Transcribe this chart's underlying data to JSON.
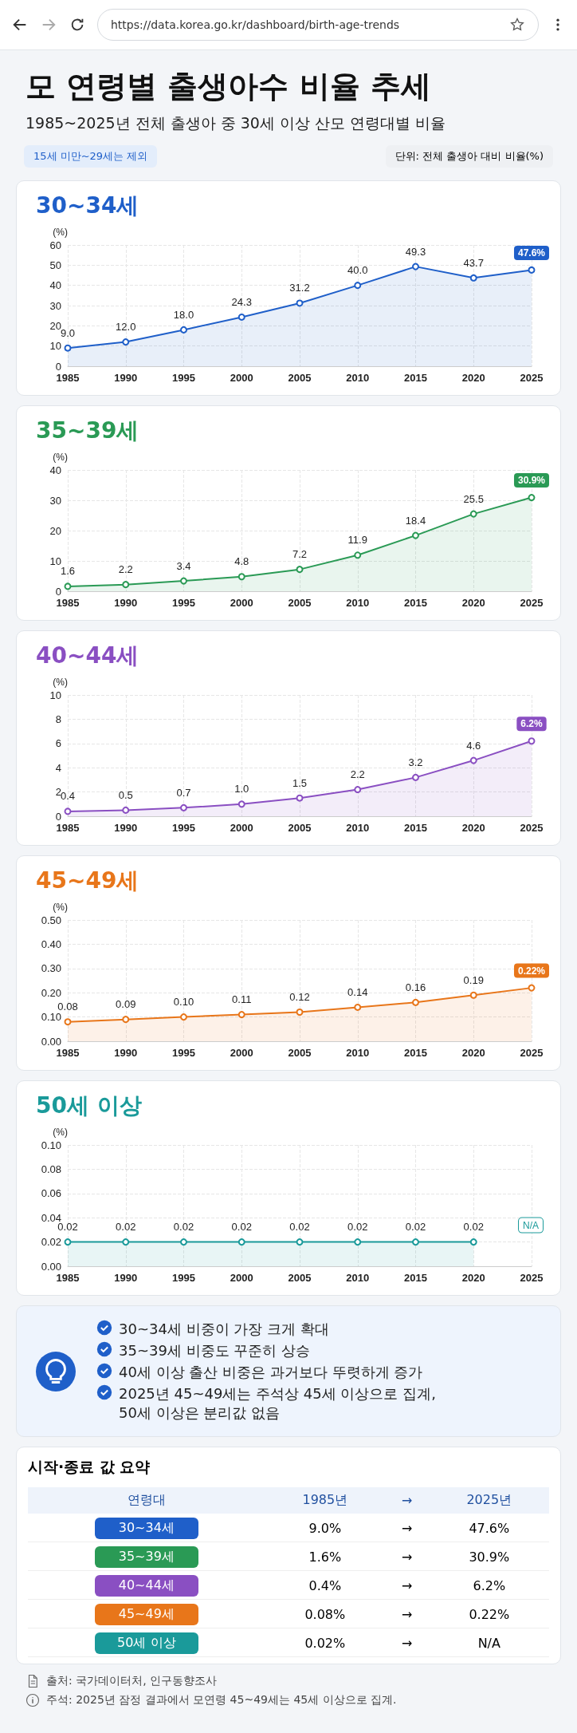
{
  "chart_data": [
    {
      "type": "other",
      "title": "모 연령별 출생아수 비율 추세",
      "subtitle": "1985~2025년 전체 출생아 중 30세 이상 산모 연령대별 비율",
      "annotations": [
        "https://data.korea.go.kr/dashboard/birth-age-trends",
        "15세 미만~29세는 제외",
        "단위: 전체 출생아 대비 비율(%)"
      ]
    },
    {
      "type": "area",
      "title": "30~34세",
      "ylabel": "(%)",
      "categories": [
        "1985",
        "1990",
        "1995",
        "2000",
        "2005",
        "2010",
        "2015",
        "2020",
        "2025"
      ],
      "series": [
        {
          "color": "#1f5fc9",
          "values": [
            9.0,
            12.0,
            18.0,
            24.3,
            31.2,
            40.0,
            49.3,
            43.7,
            47.6
          ],
          "value_labels": [
            "9.0",
            "12.0",
            "18.0",
            "24.3",
            "31.2",
            "40.0",
            "49.3",
            "43.7",
            "47.6%"
          ]
        }
      ],
      "ylim": [
        0,
        60
      ],
      "yticks": [
        0,
        10,
        20,
        30,
        40,
        50,
        60
      ],
      "grid": true,
      "marker": "circle"
    },
    {
      "type": "area",
      "title": "35~39세",
      "ylabel": "(%)",
      "categories": [
        "1985",
        "1990",
        "1995",
        "2000",
        "2005",
        "2010",
        "2015",
        "2020",
        "2025"
      ],
      "series": [
        {
          "color": "#2a9a55",
          "values": [
            1.6,
            2.2,
            3.4,
            4.8,
            7.2,
            11.9,
            18.4,
            25.5,
            30.9
          ],
          "value_labels": [
            "1.6",
            "2.2",
            "3.4",
            "4.8",
            "7.2",
            "11.9",
            "18.4",
            "25.5",
            "30.9%"
          ]
        }
      ],
      "ylim": [
        0,
        40
      ],
      "yticks": [
        0,
        10,
        20,
        30,
        40
      ],
      "grid": true,
      "marker": "circle"
    },
    {
      "type": "area",
      "title": "40~44세",
      "ylabel": "(%)",
      "categories": [
        "1985",
        "1990",
        "1995",
        "2000",
        "2005",
        "2010",
        "2015",
        "2020",
        "2025"
      ],
      "series": [
        {
          "color": "#8a4fc2",
          "values": [
            0.4,
            0.5,
            0.7,
            1.0,
            1.5,
            2.2,
            3.2,
            4.6,
            6.2
          ],
          "value_labels": [
            "0.4",
            "0.5",
            "0.7",
            "1.0",
            "1.5",
            "2.2",
            "3.2",
            "4.6",
            "6.2%"
          ]
        }
      ],
      "ylim": [
        0,
        10
      ],
      "yticks": [
        0,
        2,
        4,
        6,
        8,
        10
      ],
      "grid": true,
      "marker": "circle"
    },
    {
      "type": "area",
      "title": "45~49세",
      "ylabel": "(%)",
      "categories": [
        "1985",
        "1990",
        "1995",
        "2000",
        "2005",
        "2010",
        "2015",
        "2020",
        "2025"
      ],
      "series": [
        {
          "color": "#e8761a",
          "values": [
            0.08,
            0.09,
            0.1,
            0.11,
            0.12,
            0.14,
            0.16,
            0.19,
            0.22
          ],
          "value_labels": [
            "0.08",
            "0.09",
            "0.10",
            "0.11",
            "0.12",
            "0.14",
            "0.16",
            "0.19",
            "0.22%"
          ]
        }
      ],
      "ylim": [
        0,
        0.5
      ],
      "yticks": [
        {
          "value": 0,
          "label": "0.00"
        },
        {
          "value": 0.1,
          "label": "0.10"
        },
        {
          "value": 0.2,
          "label": "0.20"
        },
        {
          "value": 0.3,
          "label": "0.30"
        },
        {
          "value": 0.4,
          "label": "0.40"
        },
        {
          "value": 0.5,
          "label": "0.50"
        }
      ],
      "grid": true,
      "marker": "circle"
    },
    {
      "type": "area",
      "title": "50세 이상",
      "ylabel": "(%)",
      "categories": [
        "1985",
        "1990",
        "1995",
        "2000",
        "2005",
        "2010",
        "2015",
        "2020",
        "2025"
      ],
      "series": [
        {
          "color": "#1a9a9a",
          "values": [
            0.02,
            0.02,
            0.02,
            0.02,
            0.02,
            0.02,
            0.02,
            0.02,
            null
          ],
          "value_labels": [
            "0.02",
            "0.02",
            "0.02",
            "0.02",
            "0.02",
            "0.02",
            "0.02",
            "0.02",
            "N/A"
          ]
        }
      ],
      "ylim": [
        0,
        0.1
      ],
      "yticks": [
        {
          "value": 0,
          "label": "0.00"
        },
        {
          "value": 0.02,
          "label": "0.02"
        },
        {
          "value": 0.04,
          "label": "0.04"
        },
        {
          "value": 0.06,
          "label": "0.06"
        },
        {
          "value": 0.08,
          "label": "0.08"
        },
        {
          "value": 0.1,
          "label": "0.10"
        }
      ],
      "grid": true,
      "marker": "circle"
    },
    {
      "type": "other",
      "annotations": [
        "30~34세 비중이 가장 크게 확대",
        "35~39세 비중도 꾸준히 상승",
        "40세 이상 출산 비중은 과거보다 뚜렷하게 증가",
        "2025년 45~49세는 주석상 45세 이상으로 집계,\n50세 이상은 분리값 없음"
      ]
    },
    {
      "type": "other",
      "title": "시작·종료 값 요약",
      "categories": [
        "연령대",
        "1985년",
        "→",
        "2025년"
      ],
      "y_categories": [
        "30~34세",
        "35~39세",
        "40~44세",
        "45~49세",
        "50세 이상"
      ],
      "cell_labels": [
        [
          "9.0%",
          "→",
          "47.6%"
        ],
        [
          "1.6%",
          "→",
          "30.9%"
        ],
        [
          "0.4%",
          "→",
          "6.2%"
        ],
        [
          "0.08%",
          "→",
          "0.22%"
        ],
        [
          "0.02%",
          "→",
          "N/A"
        ]
      ],
      "annotations": [
        "출처: 국가데이터처, 인구동향조사",
        "주석: 2025년 잠정 결과에서 모연령 45~49세는 45세 이상으로 집계."
      ]
    }
  ]
}
